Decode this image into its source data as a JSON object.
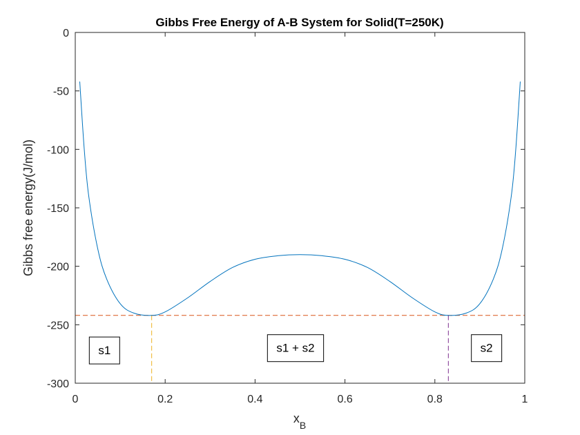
{
  "chart_data": {
    "type": "line",
    "title": "Gibbs Free Energy of A-B System for Solid(T=250K)",
    "xlabel": "x",
    "xlabel_subscript": "B",
    "ylabel": "Gibbs free energy(J/mol)",
    "xlim": [
      0,
      1
    ],
    "ylim": [
      -300,
      0
    ],
    "xticks": [
      0,
      0.2,
      0.4,
      0.6,
      0.8,
      1
    ],
    "xtick_labels": [
      "0",
      "0.2",
      "0.4",
      "0.6",
      "0.8",
      "1"
    ],
    "yticks": [
      0,
      -50,
      -100,
      -150,
      -200,
      -250,
      -300
    ],
    "ytick_labels": [
      "0",
      "-50",
      "-100",
      "-150",
      "-200",
      "-250",
      "-300"
    ],
    "grid": false,
    "series": [
      {
        "color": "#0072BD",
        "x": [
          0.01,
          0.02,
          0.03,
          0.05,
          0.07,
          0.1,
          0.13,
          0.17,
          0.2,
          0.25,
          0.3,
          0.35,
          0.4,
          0.45,
          0.5,
          0.55,
          0.6,
          0.65,
          0.7,
          0.75,
          0.8,
          0.83,
          0.87,
          0.9,
          0.93,
          0.95,
          0.97,
          0.98,
          0.99
        ],
        "y": [
          -42,
          -100,
          -140,
          -185,
          -211,
          -232,
          -240,
          -242,
          -239,
          -227,
          -213,
          -201,
          -194,
          -191,
          -190,
          -191,
          -194,
          -201,
          -213,
          -227,
          -239,
          -242,
          -240,
          -232,
          -211,
          -185,
          -140,
          -100,
          -42
        ]
      }
    ],
    "reference_lines": [
      {
        "kind": "horizontal",
        "y": -242,
        "color": "#D95319",
        "style": "dashed"
      },
      {
        "kind": "vertical",
        "x": 0.17,
        "y_from": -242,
        "y_to": -300,
        "color": "#EDB120",
        "style": "dashed"
      },
      {
        "kind": "vertical",
        "x": 0.83,
        "y_from": -242,
        "y_to": -300,
        "color": "#7E2F8E",
        "style": "dashed"
      }
    ],
    "annotations": [
      {
        "text": "s1",
        "x": 0.065,
        "y": -272
      },
      {
        "text": "s1 + s2",
        "x": 0.49,
        "y": -270
      },
      {
        "text": "s2",
        "x": 0.915,
        "y": -270
      }
    ]
  }
}
